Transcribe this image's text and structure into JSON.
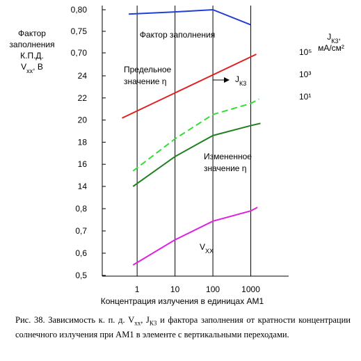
{
  "chart_data": {
    "type": "line",
    "x_label": "Концентрация излучения в единицах АМ1",
    "x_scale": "log",
    "xlim": [
      0.12,
      10000
    ],
    "xticks": [
      1,
      10,
      100,
      1000
    ],
    "grid": true,
    "y_label": [
      [
        "Фактор"
      ],
      [
        "заполнения"
      ],
      [
        "К.П.Д."
      ],
      [
        "V",
        {
          "sub": "хх"
        },
        ", В"
      ]
    ],
    "y2_label": [
      [
        "J",
        {
          "sub": "К3"
        },
        ","
      ],
      [
        "мА/см²"
      ]
    ],
    "axes": {
      "fill": {
        "ylim": [
          0.7,
          0.8
        ],
        "yticks": [
          {
            "value": 0.7,
            "label": "0,70"
          },
          {
            "value": 0.75,
            "label": "0,75"
          },
          {
            "value": 0.8,
            "label": "0,80"
          }
        ]
      },
      "eta": {
        "ylim": [
          14,
          24
        ],
        "yticks": [
          14,
          16,
          18,
          20,
          22,
          24
        ]
      },
      "vxx": {
        "ylim": [
          0.5,
          0.8
        ],
        "yticks": [
          {
            "value": 0.5,
            "label": "0,5"
          },
          {
            "value": 0.6,
            "label": "0,6"
          },
          {
            "value": 0.7,
            "label": "0,7"
          },
          {
            "value": 0.8,
            "label": "0,8"
          }
        ]
      },
      "j": {
        "scale": "log",
        "ylim": [
          10,
          100000
        ],
        "yticks": [
          {
            "value": 10,
            "label": "10¹"
          },
          {
            "value": 1000,
            "label": "10³"
          },
          {
            "value": 100000,
            "label": "10⁵"
          }
        ]
      }
    },
    "series": [
      {
        "axis": "fill",
        "color": "#1f3fd6",
        "dash": false,
        "x": [
          0.6,
          10,
          100,
          1000
        ],
        "values": [
          0.79,
          0.795,
          0.8,
          0.765
        ]
      },
      {
        "axis": "j",
        "color": "#e02020",
        "dash": false,
        "x": [
          0.4,
          1400
        ],
        "values": [
          0.12,
          65000
        ]
      },
      {
        "axis": "eta",
        "color": "#33dd33",
        "dash": true,
        "x": [
          0.78,
          10,
          100,
          1000,
          1650
        ],
        "values": [
          15.4,
          18.3,
          20.5,
          21.5,
          21.9
        ]
      },
      {
        "axis": "eta",
        "color": "#208020",
        "dash": false,
        "x": [
          0.78,
          10,
          100,
          1000,
          1800
        ],
        "values": [
          14.0,
          16.7,
          18.6,
          19.5,
          19.7
        ]
      },
      {
        "axis": "vxx",
        "color": "#e020e0",
        "dash": false,
        "x": [
          0.78,
          10,
          100,
          1000,
          1500
        ],
        "values": [
          0.547,
          0.66,
          0.744,
          0.79,
          0.806
        ]
      }
    ],
    "annotations": [
      [
        [
          "Фактор заполнения"
        ]
      ],
      [
        [
          "Предельное"
        ],
        [
          "значение η"
        ]
      ],
      [
        [
          "J",
          {
            "sub": "К3"
          }
        ]
      ],
      [
        [
          "Измененное"
        ],
        [
          "значение η"
        ]
      ],
      [
        [
          "V",
          {
            "sub": "ХХ"
          }
        ]
      ]
    ]
  },
  "caption": [
    "Рис. 38. Зависимость к. п. д. V",
    {
      "sub": "хх"
    },
    ", J",
    {
      "sub": "К3"
    },
    " и фактора заполнения от кратности концентрации солнечного излучения при АМ1 в элементе с вертикальными переходами."
  ]
}
